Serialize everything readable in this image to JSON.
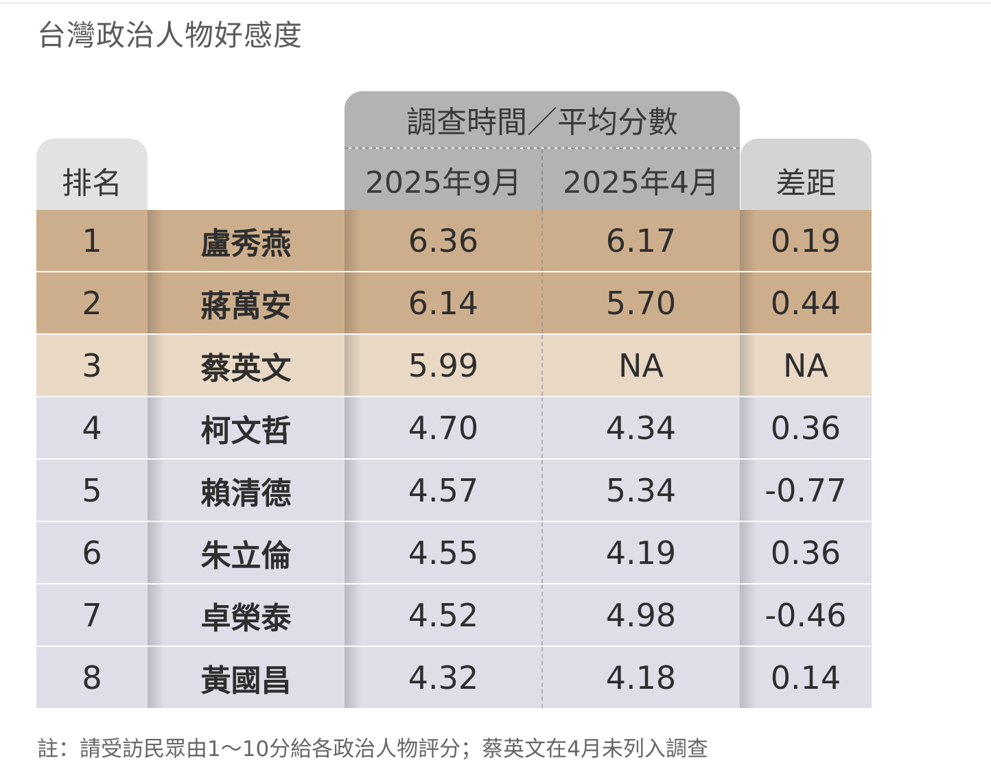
{
  "title": "台灣政治人物好感度",
  "note": "註：請受訪民眾由1～10分給各政治人物評分；蔡英文在4月未列入調查",
  "header": {
    "rank": "排名",
    "group": "調查時間／平均分數",
    "col_sep": "2025年9月",
    "col_apr": "2025年4月",
    "diff": "差距"
  },
  "colors": {
    "tier1": "#cdae8c",
    "tier2": "#e8d8c4",
    "tier3": "#dedde8",
    "header_gray": "#b3b3b3"
  },
  "chart_data": {
    "type": "table",
    "title": "台灣政治人物好感度",
    "columns": [
      "排名",
      "",
      "2025年9月",
      "2025年4月",
      "差距"
    ],
    "rows": [
      {
        "rank": "1",
        "name": "盧秀燕",
        "sep": "6.36",
        "apr": "6.17",
        "diff": "0.19",
        "tier": "tier1"
      },
      {
        "rank": "2",
        "name": "蔣萬安",
        "sep": "6.14",
        "apr": "5.70",
        "diff": "0.44",
        "tier": "tier1"
      },
      {
        "rank": "3",
        "name": "蔡英文",
        "sep": "5.99",
        "apr": "NA",
        "diff": "NA",
        "tier": "tier2"
      },
      {
        "rank": "4",
        "name": "柯文哲",
        "sep": "4.70",
        "apr": "4.34",
        "diff": "0.36",
        "tier": "tier3"
      },
      {
        "rank": "5",
        "name": "賴清德",
        "sep": "4.57",
        "apr": "5.34",
        "diff": "-0.77",
        "tier": "tier3"
      },
      {
        "rank": "6",
        "name": "朱立倫",
        "sep": "4.55",
        "apr": "4.19",
        "diff": "0.36",
        "tier": "tier3"
      },
      {
        "rank": "7",
        "name": "卓榮泰",
        "sep": "4.52",
        "apr": "4.98",
        "diff": "-0.46",
        "tier": "tier3"
      },
      {
        "rank": "8",
        "name": "黃國昌",
        "sep": "4.32",
        "apr": "4.18",
        "diff": "0.14",
        "tier": "tier3"
      }
    ]
  }
}
